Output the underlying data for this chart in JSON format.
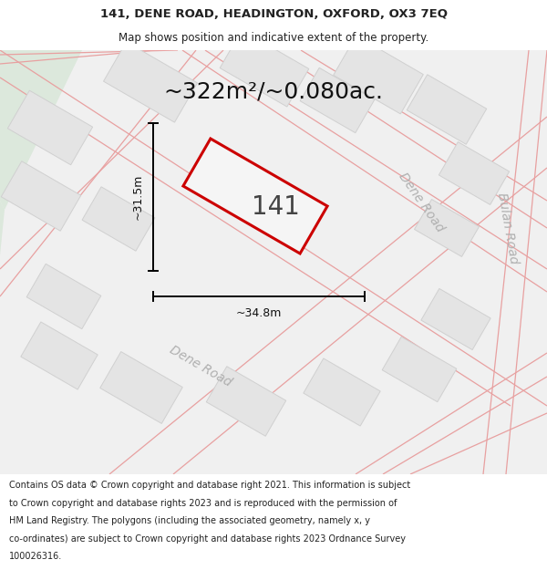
{
  "title_line1": "141, DENE ROAD, HEADINGTON, OXFORD, OX3 7EQ",
  "title_line2": "Map shows position and indicative extent of the property.",
  "area_label": "~322m²/~0.080ac.",
  "property_number": "141",
  "dim_width": "~34.8m",
  "dim_height": "~31.5m",
  "road_label_dene_lower": "Dene Road",
  "road_label_dene_right": "Dene Road",
  "road_label_bulan": "Bulan Road",
  "footer_text": "Contains OS data © Crown copyright and database right 2021. This information is subject to Crown copyright and database rights 2023 and is reproduced with the permission of HM Land Registry. The polygons (including the associated geometry, namely x, y co-ordinates) are subject to Crown copyright and database rights 2023 Ordnance Survey 100026316.",
  "map_bg": "#f0f0f0",
  "road_fill": "#e0e0e0",
  "block_fill": "#e4e4e4",
  "block_edge": "#d0d0d0",
  "street_line": "#e8a0a0",
  "prop_edge": "#cc0000",
  "prop_fill": "#f5f5f5",
  "green_fill": "#dce8dc",
  "title_fontsize": 9.5,
  "subtitle_fontsize": 8.5,
  "area_fontsize": 18,
  "number_fontsize": 20,
  "dim_fontsize": 9.0,
  "footer_fontsize": 7.0,
  "road_label_fontsize": 10.0
}
